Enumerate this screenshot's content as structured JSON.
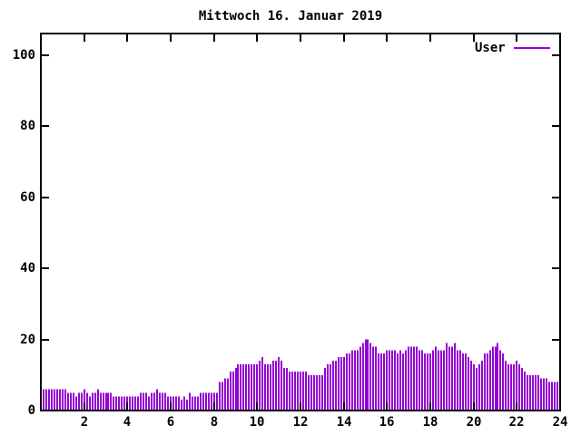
{
  "title": "Mittwoch 16. Januar 2019",
  "legend": {
    "label": "User"
  },
  "colors": {
    "series": "#9400d3",
    "axis": "#000000",
    "background": "#ffffff"
  },
  "chart_data": {
    "type": "bar",
    "style": "impulses",
    "title": "Mittwoch 16. Januar 2019",
    "xlabel": "",
    "ylabel": "",
    "xlim": [
      0,
      24
    ],
    "ylim": [
      0,
      106
    ],
    "grid": false,
    "legend_position": "top-right",
    "x_ticks": [
      2,
      4,
      6,
      8,
      10,
      12,
      14,
      16,
      18,
      20,
      22,
      24
    ],
    "y_ticks": [
      0,
      20,
      40,
      60,
      80,
      100
    ],
    "x_unit": "hours",
    "x_start": 0.125,
    "x_step": 0.125,
    "series": [
      {
        "name": "User",
        "color": "#9400d3",
        "values": [
          6,
          6,
          6,
          6,
          6,
          6,
          6,
          6,
          6,
          5,
          5,
          5,
          4,
          5,
          5,
          6,
          5,
          4,
          5,
          5,
          6,
          5,
          5,
          5,
          5,
          5,
          4,
          4,
          4,
          4,
          4,
          4,
          4,
          4,
          4,
          4,
          5,
          5,
          5,
          4,
          5,
          5,
          6,
          5,
          5,
          5,
          4,
          4,
          4,
          4,
          4,
          3,
          4,
          3,
          5,
          4,
          4,
          4,
          5,
          5,
          5,
          5,
          5,
          5,
          5,
          8,
          8,
          9,
          9,
          11,
          11,
          12,
          13,
          13,
          13,
          13,
          13,
          13,
          13,
          13,
          14,
          15,
          13,
          13,
          13,
          14,
          14,
          15,
          14,
          12,
          12,
          11,
          11,
          11,
          11,
          11,
          11,
          11,
          10,
          10,
          10,
          10,
          10,
          10,
          12,
          13,
          13,
          14,
          14,
          15,
          15,
          15,
          16,
          16,
          17,
          17,
          17,
          18,
          19,
          20,
          20,
          19,
          18,
          18,
          16,
          16,
          16,
          17,
          17,
          17,
          17,
          16,
          17,
          16,
          17,
          18,
          18,
          18,
          18,
          17,
          17,
          16,
          16,
          16,
          17,
          18,
          17,
          17,
          17,
          19,
          18,
          18,
          19,
          17,
          17,
          16,
          16,
          15,
          14,
          13,
          12,
          13,
          14,
          16,
          16,
          17,
          18,
          18,
          19,
          17,
          16,
          14,
          13,
          13,
          13,
          14,
          13,
          12,
          11,
          10,
          10,
          10,
          10,
          10,
          9,
          9,
          9,
          8,
          8,
          8,
          8,
          7
        ]
      }
    ]
  }
}
